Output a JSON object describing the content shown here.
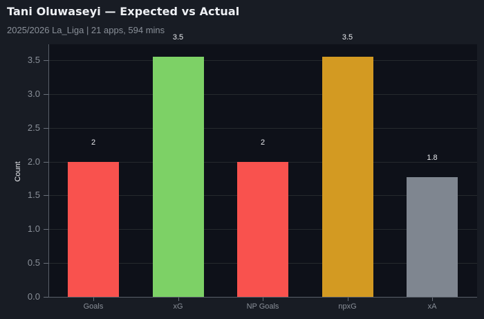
{
  "header": {
    "title": "Tani Oluwaseyi — Expected vs Actual",
    "subtitle": "2025/2026 La_Liga | 21 apps, 594 mins"
  },
  "chart_data": {
    "type": "bar",
    "title": "Tani Oluwaseyi — Expected vs Actual",
    "subtitle": "2025/2026 La_Liga | 21 apps, 594 mins",
    "categories": [
      "Goals",
      "xG",
      "NP Goals",
      "npxG",
      "xA"
    ],
    "values": [
      2,
      3.55,
      2,
      3.55,
      1.77
    ],
    "data_labels": [
      "2",
      "3.5",
      "2",
      "3.5",
      "1.8"
    ],
    "colors": [
      "#f9524e",
      "#7dd166",
      "#f9524e",
      "#d39a22",
      "#7f8690"
    ],
    "xlabel": "",
    "ylabel": "Count",
    "ylim": [
      0,
      3.72
    ],
    "yticks": [
      "0.0",
      "0.5",
      "1.0",
      "1.5",
      "2.0",
      "2.5",
      "3.0",
      "3.5"
    ],
    "grid": true,
    "legend": null
  }
}
